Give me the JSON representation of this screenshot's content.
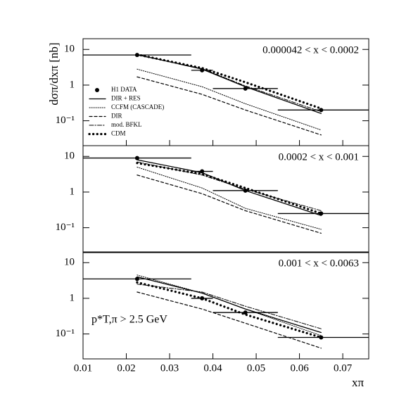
{
  "chart_data": [
    {
      "type": "line",
      "annotation": "0.000042 < x < 0.0002",
      "ylabel": "dσπ/dxπ [nb]",
      "log_scale": true,
      "xlim": [
        0.01,
        0.076
      ],
      "xticks": [
        0.01,
        0.02,
        0.03,
        0.04,
        0.05,
        0.06,
        0.07
      ],
      "ylim": [
        0.02,
        20
      ],
      "yticks": [
        10,
        1,
        {
          "value": 0.1,
          "label": "10⁻¹"
        }
      ],
      "x": [
        0.0225,
        0.0375,
        0.0475,
        0.065
      ],
      "x_low": [
        0.01,
        0.035,
        0.04,
        0.055
      ],
      "x_high": [
        0.035,
        0.04,
        0.055,
        0.076
      ],
      "series": [
        {
          "name": "H1 DATA",
          "style": "points",
          "color": "#000000",
          "values": [
            7,
            2.6,
            0.8,
            0.2
          ]
        },
        {
          "name": "DIR + RES",
          "style": "solid",
          "color": "#000000",
          "values": [
            7.2,
            2.8,
            0.9,
            0.16
          ]
        },
        {
          "name": "CCFM (CASCADE)",
          "style": "dotted",
          "color": "#000000",
          "values": [
            2.8,
            0.9,
            0.3,
            0.055
          ]
        },
        {
          "name": "DIR",
          "style": "dashed",
          "color": "#000000",
          "values": [
            1.7,
            0.55,
            0.2,
            0.04
          ]
        },
        {
          "name": "mod. BFKL",
          "style": "dashdot",
          "color": "#000000",
          "values": [
            7,
            2.9,
            0.95,
            0.18
          ]
        },
        {
          "name": "CDM",
          "style": "bigdots",
          "color": "#000000",
          "values": [
            7.2,
            3,
            1.2,
            0.22
          ]
        }
      ]
    },
    {
      "type": "line",
      "annotation": "0.0002 < x < 0.001",
      "log_scale": true,
      "xlim": [
        0.01,
        0.076
      ],
      "ylim": [
        0.02,
        20
      ],
      "yticks": [
        10,
        1,
        {
          "value": 0.1,
          "label": "10⁻¹"
        }
      ],
      "x": [
        0.0225,
        0.0375,
        0.0475,
        0.065
      ],
      "x_low": [
        0.01,
        0.035,
        0.04,
        0.055
      ],
      "x_high": [
        0.035,
        0.04,
        0.055,
        0.076
      ],
      "series": [
        {
          "style": "points",
          "color": "#000000",
          "values": [
            9,
            3.8,
            1.1,
            0.25
          ]
        },
        {
          "style": "solid",
          "color": "#000000",
          "values": [
            8,
            3.5,
            1.1,
            0.22
          ]
        },
        {
          "style": "dotted",
          "color": "#000000",
          "values": [
            5,
            1.3,
            0.35,
            0.09
          ]
        },
        {
          "style": "dashed",
          "color": "#000000",
          "values": [
            3,
            0.9,
            0.3,
            0.07
          ]
        },
        {
          "style": "dashdot",
          "color": "#000000",
          "values": [
            7,
            3,
            1.2,
            0.3
          ]
        },
        {
          "style": "bigdots",
          "color": "#000000",
          "values": [
            6.5,
            3.2,
            1.3,
            0.25
          ]
        }
      ]
    },
    {
      "type": "line",
      "annotation": "0.001 < x < 0.0063",
      "note": "p*T,π > 2.5 GeV",
      "xlabel": "xπ",
      "log_scale": true,
      "xlim": [
        0.01,
        0.076
      ],
      "xticks": [
        0.01,
        0.02,
        0.03,
        0.04,
        0.05,
        0.06,
        0.07
      ],
      "ylim": [
        0.02,
        20
      ],
      "yticks": [
        10,
        1,
        {
          "value": 0.1,
          "label": "10⁻¹"
        }
      ],
      "x": [
        0.0225,
        0.0375,
        0.0475,
        0.065
      ],
      "x_low": [
        0.01,
        0.035,
        0.04,
        0.055
      ],
      "x_high": [
        0.035,
        0.04,
        0.055,
        0.076
      ],
      "series": [
        {
          "style": "points",
          "color": "#000000",
          "values": [
            3.5,
            1,
            0.4,
            0.08
          ]
        },
        {
          "style": "solid",
          "color": "#000000",
          "values": [
            4,
            1.4,
            0.5,
            0.11
          ]
        },
        {
          "style": "dotted",
          "color": "#000000",
          "values": [
            4.5,
            1.4,
            0.5,
            0.09
          ]
        },
        {
          "style": "dashed",
          "color": "#000000",
          "values": [
            1.5,
            0.5,
            0.2,
            0.04
          ]
        },
        {
          "style": "dashdot",
          "color": "#000000",
          "values": [
            2.5,
            1.5,
            0.6,
            0.14
          ]
        },
        {
          "style": "bigdots",
          "color": "#000000",
          "values": [
            2.8,
            1,
            0.35,
            0.08
          ]
        }
      ]
    }
  ]
}
